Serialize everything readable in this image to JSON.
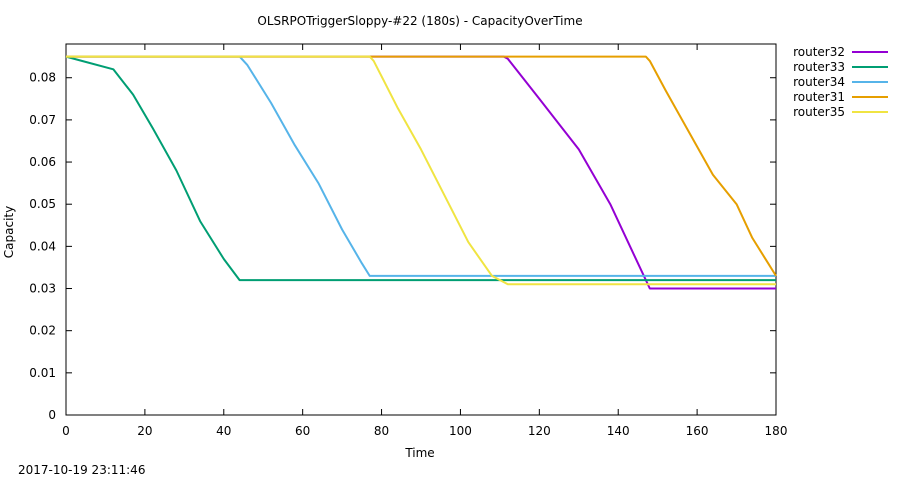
{
  "timestamp": "2017-10-19 23:11:46",
  "chart_data": {
    "type": "line",
    "title": "OLSRPOTriggerSloppy-#22 (180s) - CapacityOverTime",
    "xlabel": "Time",
    "ylabel": "Capacity",
    "xlim": [
      0,
      180
    ],
    "ylim": [
      0,
      0.088
    ],
    "xticks": [
      0,
      20,
      40,
      60,
      80,
      100,
      120,
      140,
      160,
      180
    ],
    "yticks": [
      0,
      0.01,
      0.02,
      0.03,
      0.04,
      0.05,
      0.06,
      0.07,
      0.08
    ],
    "ytick_labels": [
      "0",
      "0.01",
      "0.02",
      "0.03",
      "0.04",
      "0.05",
      "0.06",
      "0.07",
      "0.08"
    ],
    "grid": false,
    "legend_position": "outside-right",
    "series": [
      {
        "name": "router32",
        "color": "#9400d3",
        "points": [
          [
            0,
            0.085
          ],
          [
            111,
            0.085
          ],
          [
            112,
            0.0845
          ],
          [
            120,
            0.075
          ],
          [
            130,
            0.063
          ],
          [
            138,
            0.05
          ],
          [
            145,
            0.036
          ],
          [
            148,
            0.03
          ],
          [
            180,
            0.03
          ]
        ]
      },
      {
        "name": "router33",
        "color": "#009e73",
        "points": [
          [
            0,
            0.085
          ],
          [
            4,
            0.084
          ],
          [
            12,
            0.082
          ],
          [
            17,
            0.076
          ],
          [
            22,
            0.068
          ],
          [
            28,
            0.058
          ],
          [
            34,
            0.046
          ],
          [
            40,
            0.037
          ],
          [
            44,
            0.032
          ],
          [
            180,
            0.032
          ]
        ]
      },
      {
        "name": "router34",
        "color": "#56b4e9",
        "points": [
          [
            0,
            0.085
          ],
          [
            44,
            0.085
          ],
          [
            46,
            0.083
          ],
          [
            52,
            0.074
          ],
          [
            58,
            0.064
          ],
          [
            64,
            0.055
          ],
          [
            70,
            0.044
          ],
          [
            75,
            0.036
          ],
          [
            77,
            0.033
          ],
          [
            180,
            0.033
          ]
        ]
      },
      {
        "name": "router31",
        "color": "#e69f00",
        "points": [
          [
            0,
            0.085
          ],
          [
            147,
            0.085
          ],
          [
            148,
            0.084
          ],
          [
            152,
            0.077
          ],
          [
            158,
            0.067
          ],
          [
            164,
            0.057
          ],
          [
            170,
            0.05
          ],
          [
            174,
            0.042
          ],
          [
            178,
            0.036
          ],
          [
            180,
            0.033
          ]
        ]
      },
      {
        "name": "router35",
        "color": "#f0e442",
        "points": [
          [
            0,
            0.085
          ],
          [
            77,
            0.085
          ],
          [
            78,
            0.084
          ],
          [
            84,
            0.073
          ],
          [
            90,
            0.063
          ],
          [
            96,
            0.052
          ],
          [
            102,
            0.041
          ],
          [
            108,
            0.033
          ],
          [
            112,
            0.031
          ],
          [
            180,
            0.031
          ]
        ]
      }
    ]
  }
}
